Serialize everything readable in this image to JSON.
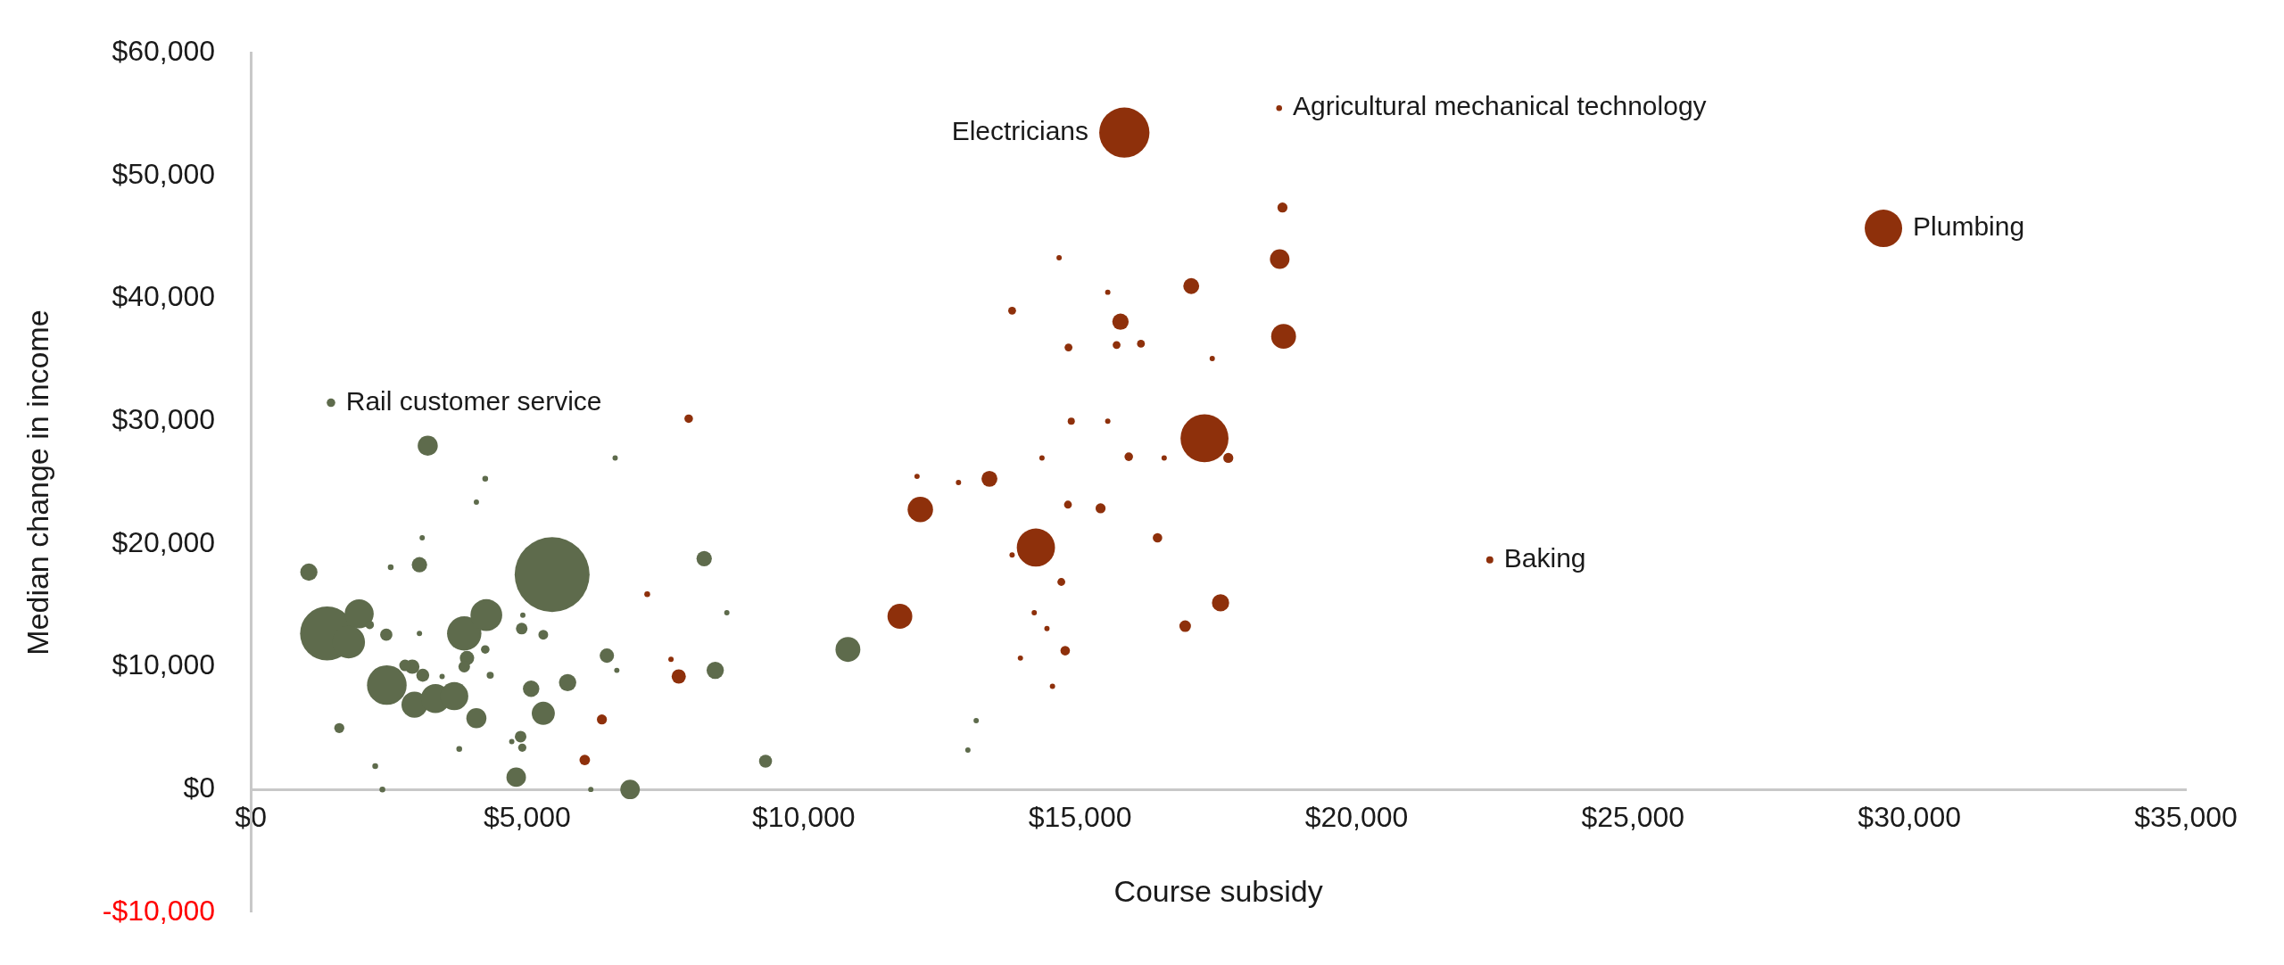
{
  "chart_data": {
    "type": "bubble",
    "xlabel": "Course subsidy",
    "ylabel": "Median change in income",
    "grid": false,
    "legend": false,
    "xlim": [
      0,
      35000
    ],
    "ylim": [
      -10000,
      60000
    ],
    "xticks": [
      {
        "value": 0,
        "label": "$0"
      },
      {
        "value": 5000,
        "label": "$5,000"
      },
      {
        "value": 10000,
        "label": "$10,000"
      },
      {
        "value": 15000,
        "label": "$15,000"
      },
      {
        "value": 20000,
        "label": "$20,000"
      },
      {
        "value": 25000,
        "label": "$25,000"
      },
      {
        "value": 30000,
        "label": "$30,000"
      },
      {
        "value": 35000,
        "label": "$35,000"
      }
    ],
    "yticks": [
      {
        "value": -10000,
        "label": "-$10,000"
      },
      {
        "value": 0,
        "label": "$0"
      },
      {
        "value": 10000,
        "label": "$10,000"
      },
      {
        "value": 20000,
        "label": "$20,000"
      },
      {
        "value": 30000,
        "label": "$30,000"
      },
      {
        "value": 40000,
        "label": "$40,000"
      },
      {
        "value": 50000,
        "label": "$50,000"
      },
      {
        "value": 60000,
        "label": "$60,000"
      }
    ],
    "series": [
      {
        "color": "#5e6b4c",
        "x": [
          1450,
          3200,
          4240,
          4080,
          6590,
          3100,
          1050,
          2530,
          3050,
          5450,
          1380,
          1960,
          1770,
          2150,
          2450,
          3050,
          3860,
          4260,
          4920,
          4900,
          5290,
          6440,
          6620,
          4240,
          3910,
          3860,
          2920,
          2790,
          3110,
          3460,
          4330,
          2460,
          2960,
          3340,
          3680,
          4080,
          5070,
          5730,
          5290,
          1600,
          4880,
          4720,
          4910,
          3770,
          2250,
          4800,
          2380,
          6150,
          6860,
          8200,
          8610,
          8400,
          9310,
          10800,
          13120,
          12970
        ],
        "values": [
          31500,
          28000,
          25300,
          23400,
          27000,
          20500,
          17700,
          18100,
          18300,
          17500,
          12700,
          14300,
          12000,
          13400,
          12600,
          12700,
          12700,
          14200,
          14200,
          13100,
          12600,
          10900,
          9700,
          11400,
          10700,
          10000,
          10000,
          10100,
          9300,
          9200,
          9300,
          8500,
          6900,
          7400,
          7600,
          5800,
          8200,
          8700,
          6200,
          5000,
          4300,
          3900,
          3400,
          3300,
          1900,
          1000,
          0,
          0,
          0,
          18800,
          14400,
          9700,
          2300,
          11400,
          5600,
          3200
        ],
        "sizes": [
          0.013,
          0.072,
          0.006,
          0.005,
          0.005,
          0.005,
          0.053,
          0.006,
          0.042,
          1,
          0.52,
          0.15,
          0.19,
          0.013,
          0.027,
          0.005,
          0.21,
          0.18,
          0.005,
          0.024,
          0.017,
          0.037,
          0.005,
          0.013,
          0.037,
          0.024,
          0.037,
          0.024,
          0.03,
          0.005,
          0.009,
          0.28,
          0.12,
          0.15,
          0.14,
          0.072,
          0.048,
          0.053,
          0.095,
          0.018,
          0.024,
          0.005,
          0.012,
          0.006,
          0.006,
          0.068,
          0.006,
          0.005,
          0.068,
          0.042,
          0.005,
          0.053,
          0.03,
          0.11,
          0.005,
          0.005
        ]
      },
      {
        "color": "#8e300b",
        "x": [
          7920,
          7170,
          7600,
          7740,
          6350,
          6040,
          11740,
          12110,
          12050,
          12800,
          13360,
          14310,
          14200,
          13770,
          14170,
          14400,
          13920,
          14500,
          15800,
          18600,
          18660,
          18610,
          17010,
          14620,
          13770,
          15500,
          15730,
          18680,
          14790,
          15660,
          16100,
          17390,
          14840,
          15500,
          17250,
          17680,
          15880,
          16520,
          14780,
          15370,
          16400,
          14660,
          17540,
          16900,
          14730,
          29530,
          22410
        ],
        "values": [
          30200,
          15900,
          10600,
          9200,
          5700,
          2400,
          14100,
          22800,
          25500,
          25000,
          25300,
          27000,
          19700,
          19100,
          14400,
          13100,
          10700,
          8400,
          53500,
          55500,
          47400,
          43200,
          41000,
          43300,
          39000,
          40500,
          38100,
          36900,
          36000,
          36200,
          36300,
          35100,
          30000,
          30000,
          28600,
          27000,
          27100,
          27000,
          23200,
          22900,
          20500,
          16900,
          15200,
          13300,
          11300,
          45700,
          18700
        ],
        "sizes": [
          0.013,
          0.006,
          0.005,
          0.036,
          0.018,
          0.02,
          0.11,
          0.115,
          0.005,
          0.005,
          0.045,
          0.005,
          0.26,
          0.005,
          0.005,
          0.005,
          0.005,
          0.005,
          0.45,
          0.006,
          0.018,
          0.068,
          0.045,
          0.005,
          0.011,
          0.005,
          0.048,
          0.11,
          0.011,
          0.011,
          0.011,
          0.005,
          0.009,
          0.005,
          0.41,
          0.018,
          0.013,
          0.005,
          0.011,
          0.018,
          0.016,
          0.011,
          0.053,
          0.024,
          0.016,
          0.25,
          0.009
        ]
      }
    ],
    "annotations": [
      {
        "text": "Agricultural mechanical technology",
        "x": 18600,
        "y": 55500
      },
      {
        "text": "Electricians",
        "x": 15800,
        "y": 53500
      },
      {
        "text": "Plumbing",
        "x": 29530,
        "y": 45700
      },
      {
        "text": "Baking",
        "x": 22410,
        "y": 18700
      },
      {
        "text": "Rail customer service",
        "x": 1450,
        "y": 31500
      }
    ]
  }
}
